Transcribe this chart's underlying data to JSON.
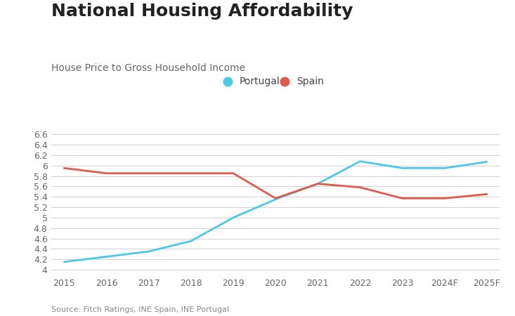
{
  "title": "National Housing Affordability",
  "subtitle": "House Price to Gross Household Income",
  "source": "Source: Fitch Ratings, INE Spain, INE Portugal",
  "x_labels": [
    "2015",
    "2016",
    "2017",
    "2018",
    "2019",
    "2020",
    "2021",
    "2022",
    "2023",
    "2024F",
    "2025F"
  ],
  "portugal_values": [
    4.15,
    4.25,
    4.35,
    4.55,
    5.0,
    5.35,
    5.65,
    6.08,
    5.95,
    5.95,
    6.07
  ],
  "spain_values": [
    5.95,
    5.85,
    5.85,
    5.85,
    5.85,
    5.37,
    5.65,
    5.58,
    5.37,
    5.37,
    5.45
  ],
  "portugal_color": "#4EC8E8",
  "spain_color": "#E05A4F",
  "ylim": [
    3.9,
    6.75
  ],
  "yticks": [
    4.0,
    4.2,
    4.4,
    4.6,
    4.8,
    5.0,
    5.2,
    5.4,
    5.6,
    5.8,
    6.0,
    6.2,
    6.4,
    6.6
  ],
  "grid_color": "#d0d0d0",
  "background_color": "#ffffff",
  "title_fontsize": 18,
  "subtitle_fontsize": 10,
  "legend_fontsize": 10,
  "tick_fontsize": 9,
  "source_fontsize": 8,
  "line_width": 2.0
}
